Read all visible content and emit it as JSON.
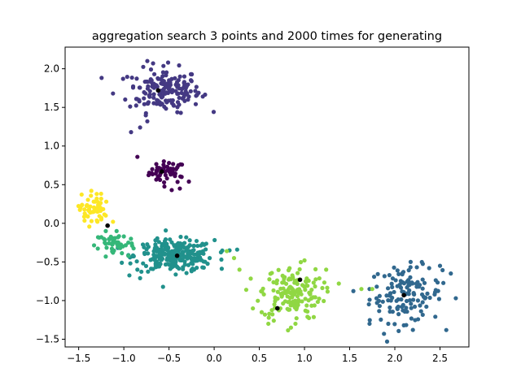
{
  "chart_data": {
    "type": "scatter",
    "title": "aggregation search 3 points and 2000 times for generating",
    "xlabel": "",
    "ylabel": "",
    "xlim": [
      -1.65,
      2.82
    ],
    "ylim": [
      -1.6,
      2.28
    ],
    "x_ticks": [
      -1.5,
      -1.0,
      -0.5,
      0.0,
      0.5,
      1.0,
      1.5,
      2.0,
      2.5
    ],
    "x_tick_labels": [
      "−1.5",
      "−1.0",
      "−0.5",
      "0.0",
      "0.5",
      "1.0",
      "1.5",
      "2.0",
      "2.5"
    ],
    "y_ticks": [
      -1.5,
      -1.0,
      -0.5,
      0.0,
      0.5,
      1.0,
      1.5,
      2.0
    ],
    "y_tick_labels": [
      "−1.5",
      "−1.0",
      "−0.5",
      "0.0",
      "0.5",
      "1.0",
      "1.5",
      "2.0"
    ],
    "grid": false,
    "legend": "none",
    "clusters": [
      {
        "color": "#440154",
        "center": [
          -0.52,
          0.66
        ],
        "spread": [
          0.1,
          0.07
        ],
        "count": 45,
        "points": [
          [
            -0.85,
            0.86
          ],
          [
            -0.38,
            0.45
          ],
          [
            -0.47,
            0.43
          ],
          [
            -0.28,
            0.54
          ],
          [
            -0.63,
            0.72
          ],
          [
            -0.36,
            0.6
          ],
          [
            -0.5,
            0.78
          ]
        ]
      },
      {
        "color": "#443983",
        "center": [
          -0.55,
          1.72
        ],
        "spread": [
          0.2,
          0.14
        ],
        "count": 170,
        "points": [
          [
            -0.92,
            1.18
          ],
          [
            -0.82,
            1.24
          ],
          [
            -0.74,
            1.32
          ],
          [
            -1.12,
            1.68
          ],
          [
            -0.28,
            1.64
          ],
          [
            -0.74,
            2.1
          ],
          [
            -0.51,
            2.08
          ],
          [
            -0.2,
            1.65
          ],
          [
            -0.33,
            1.9
          ]
        ]
      },
      {
        "color": "#31688e",
        "center": [
          2.12,
          -0.92
        ],
        "spread": [
          0.2,
          0.18
        ],
        "count": 130,
        "points": [
          [
            1.88,
            -1.43
          ],
          [
            1.72,
            -1.3
          ],
          [
            1.8,
            -0.82
          ],
          [
            2.38,
            -0.58
          ],
          [
            2.5,
            -0.55
          ],
          [
            2.62,
            -0.65
          ],
          [
            2.2,
            -1.38
          ],
          [
            2.1,
            -1.32
          ],
          [
            1.72,
            -0.85
          ]
        ]
      },
      {
        "color": "#21918c",
        "center": [
          -0.44,
          -0.42
        ],
        "spread": [
          0.22,
          0.1
        ],
        "count": 250,
        "points": [
          [
            -0.85,
            -0.6
          ],
          [
            -0.82,
            -0.71
          ],
          [
            -0.13,
            -0.57
          ],
          [
            -0.05,
            -0.45
          ],
          [
            0.08,
            -0.47
          ],
          [
            0.17,
            -0.35
          ],
          [
            -0.65,
            -0.22
          ],
          [
            -0.27,
            -0.22
          ],
          [
            -0.25,
            -0.62
          ]
        ]
      },
      {
        "color": "#35b779",
        "center": [
          -1.1,
          -0.26
        ],
        "spread": [
          0.11,
          0.07
        ],
        "count": 45,
        "points": [
          [
            -1.08,
            -0.1
          ],
          [
            -1.0,
            -0.17
          ],
          [
            -0.95,
            -0.25
          ],
          [
            -1.2,
            -0.43
          ],
          [
            -0.95,
            -0.42
          ],
          [
            -1.12,
            -0.38
          ],
          [
            -1.2,
            -0.1
          ]
        ]
      },
      {
        "color": "#90d743",
        "center": [
          0.85,
          -0.9
        ],
        "spread": [
          0.17,
          0.17
        ],
        "count": 150,
        "points": [
          [
            0.6,
            -1.3
          ],
          [
            0.66,
            -1.26
          ],
          [
            0.85,
            -1.35
          ],
          [
            0.9,
            -1.3
          ],
          [
            0.55,
            -0.92
          ],
          [
            0.52,
            -0.88
          ],
          [
            0.28,
            -0.6
          ],
          [
            0.22,
            -0.45
          ],
          [
            0.14,
            -0.36
          ],
          [
            1.24,
            -0.6
          ],
          [
            1.38,
            -0.78
          ],
          [
            1.0,
            -0.48
          ],
          [
            1.63,
            -0.85
          ],
          [
            1.75,
            -0.85
          ]
        ]
      },
      {
        "color": "#fde725",
        "center": [
          -1.35,
          0.18
        ],
        "spread": [
          0.07,
          0.1
        ],
        "count": 50,
        "points": [
          [
            -1.36,
            0.42
          ],
          [
            -1.3,
            0.38
          ],
          [
            -1.48,
            0.2
          ],
          [
            -1.42,
            0.1
          ],
          [
            -1.2,
            0.1
          ],
          [
            -1.12,
            0.02
          ]
        ]
      }
    ],
    "centroids": [
      [
        -0.62,
        1.72
      ],
      [
        -0.58,
        0.67
      ],
      [
        -1.18,
        -0.03
      ],
      [
        -0.41,
        -0.42
      ],
      [
        0.95,
        -0.73
      ],
      [
        0.7,
        -1.1
      ],
      [
        2.1,
        -0.93
      ]
    ]
  }
}
